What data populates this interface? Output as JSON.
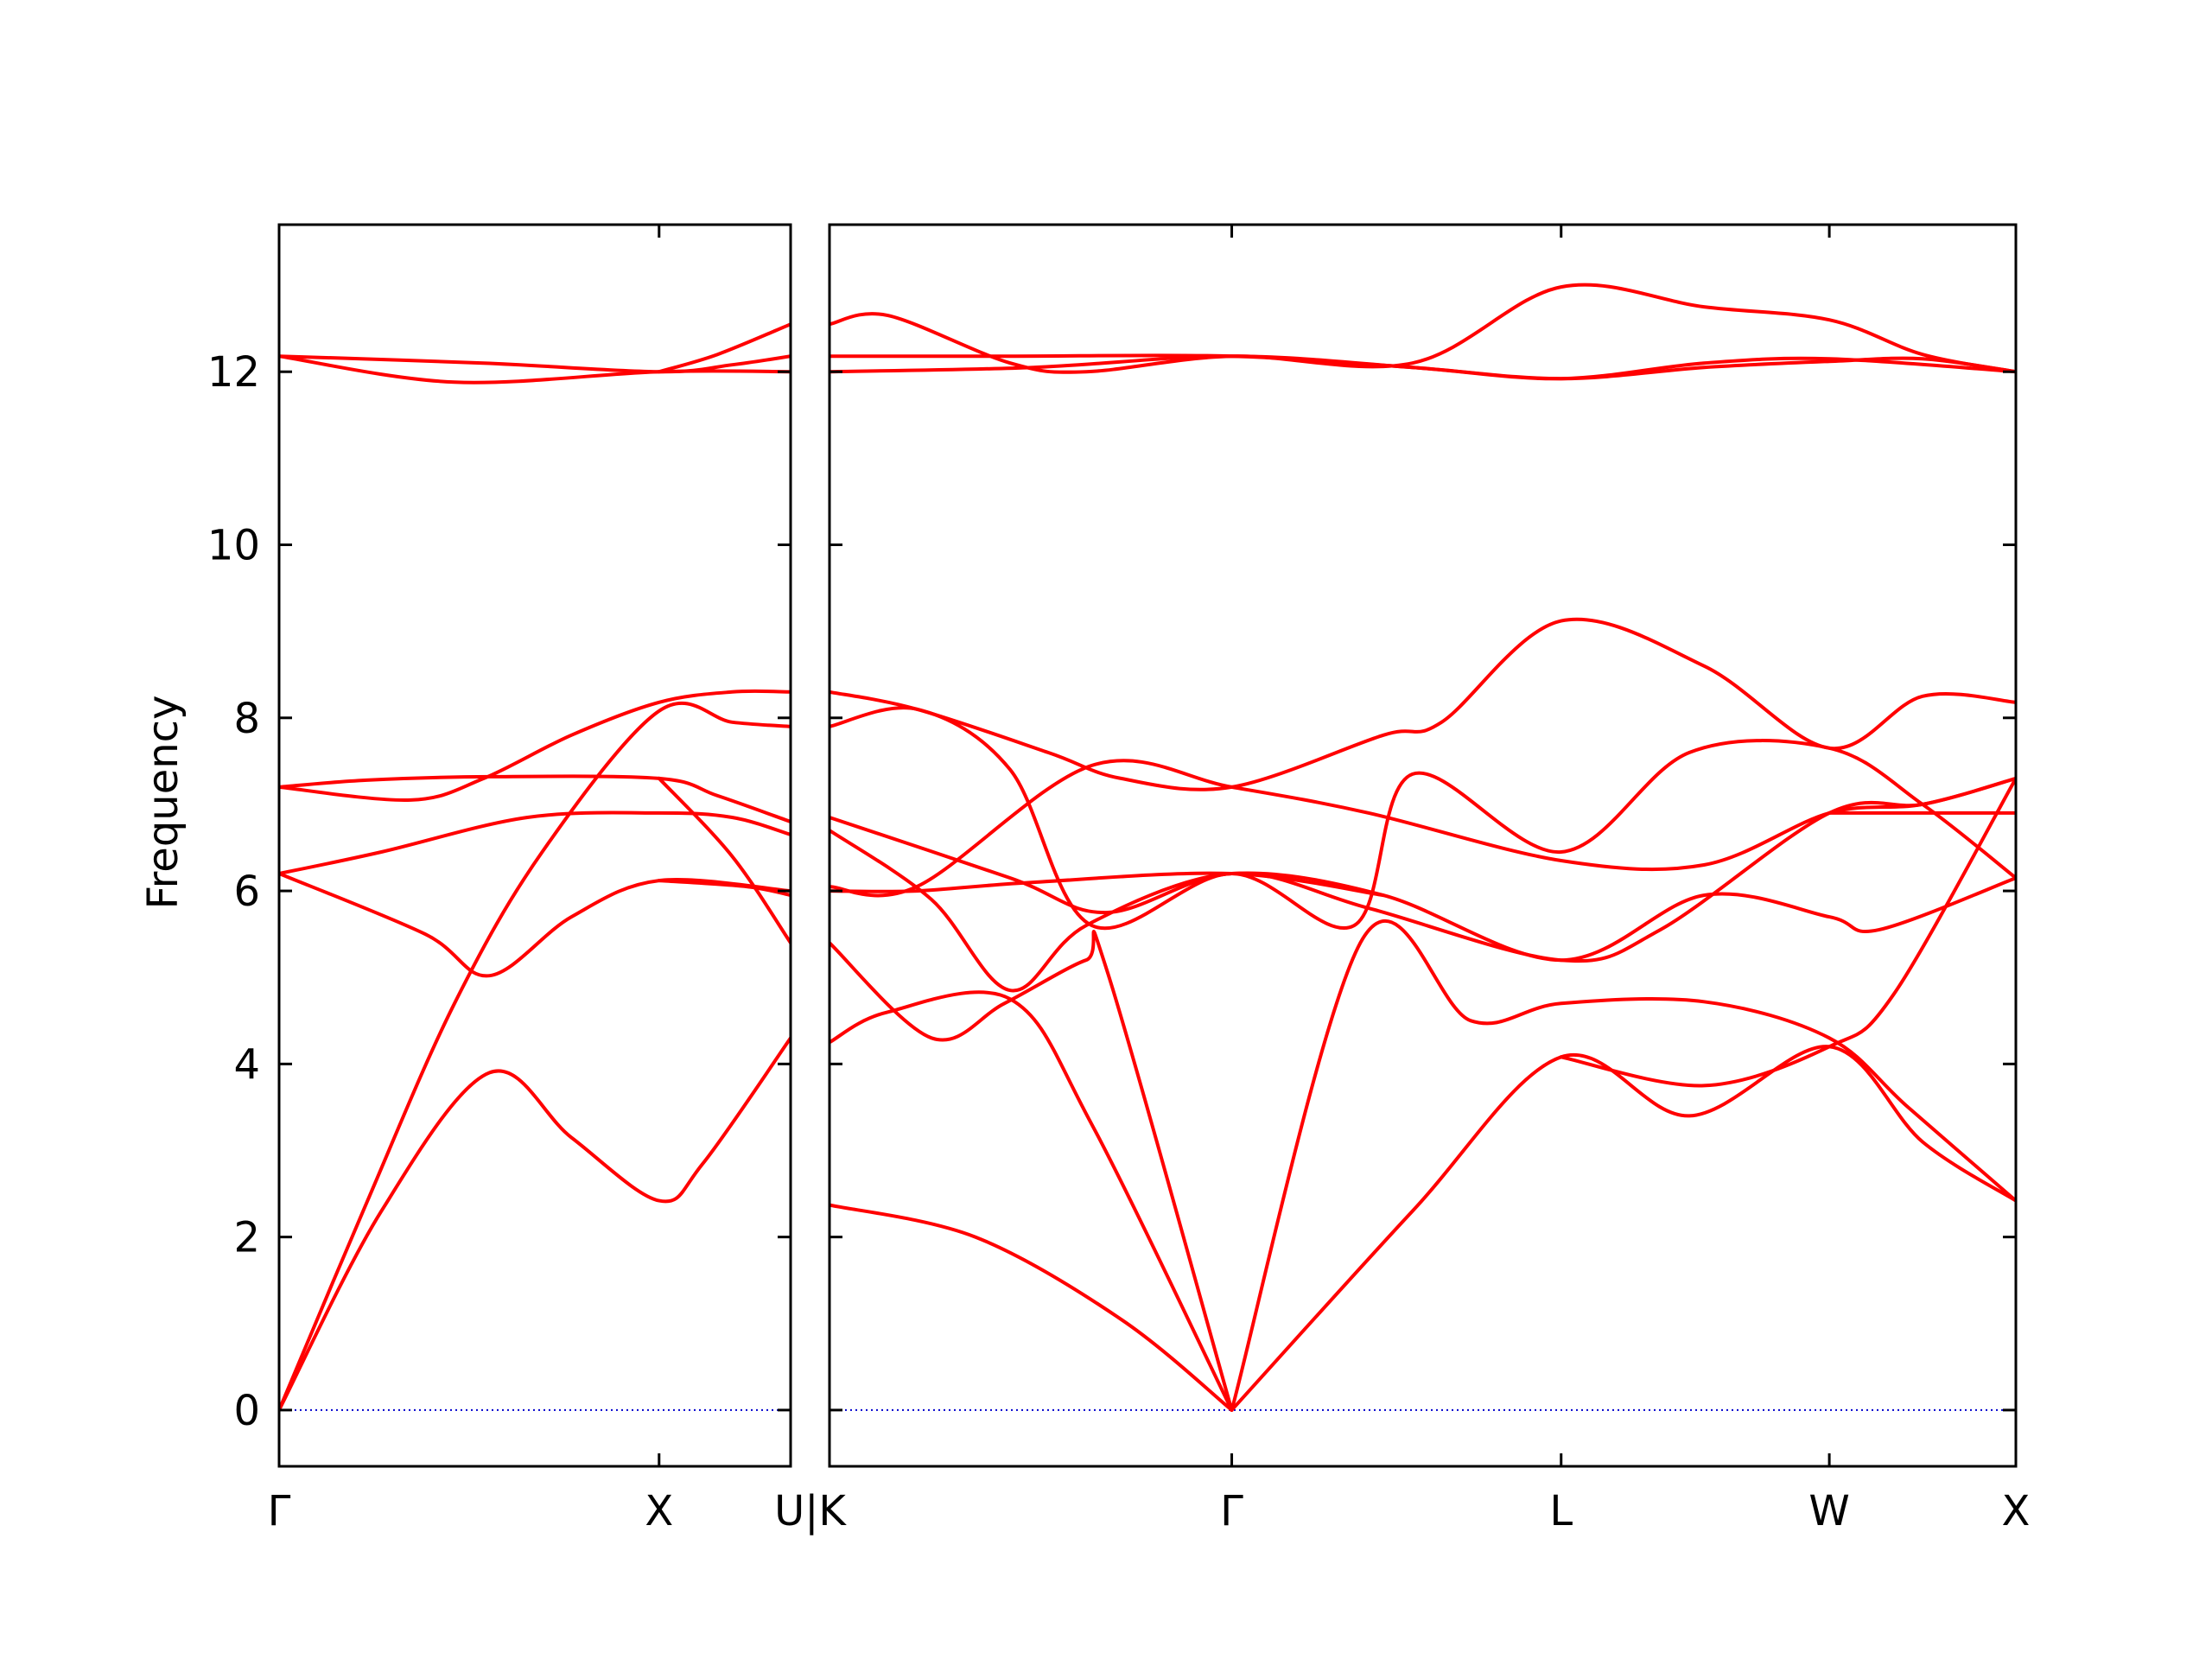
{
  "chart_data": {
    "type": "line",
    "ylabel": "Frequency",
    "ylim": [
      -0.65,
      13.7
    ],
    "yticks": [
      0,
      2,
      4,
      6,
      8,
      10,
      12
    ],
    "colors": {
      "bands": "#ff0000",
      "zero_line": "#0000cd",
      "axes": "#000000"
    },
    "panels": [
      {
        "xrange": [
          0,
          1.75
        ],
        "ticks": [
          {
            "x": 0,
            "label": "Γ"
          },
          {
            "x": 1.3,
            "label": "X"
          }
        ]
      },
      {
        "xrange": [
          0,
          4.07
        ],
        "ticks": [
          {
            "x": 0,
            "label": "U|K"
          },
          {
            "x": 1.38,
            "label": "Γ"
          },
          {
            "x": 2.51,
            "label": "L"
          },
          {
            "x": 3.43,
            "label": "W"
          },
          {
            "x": 4.07,
            "label": "X"
          }
        ]
      }
    ],
    "series": [
      {
        "panel": 0,
        "points": [
          [
            0,
            0
          ],
          [
            0.35,
            2.3
          ],
          [
            0.72,
            3.9
          ],
          [
            1.0,
            3.15
          ],
          [
            1.3,
            2.42
          ],
          [
            1.45,
            2.85
          ],
          [
            1.75,
            4.3
          ]
        ]
      },
      {
        "panel": 0,
        "points": [
          [
            0,
            0
          ],
          [
            0.3,
            2.4
          ],
          [
            0.6,
            4.7
          ],
          [
            0.9,
            6.45
          ],
          [
            1.3,
            8.08
          ],
          [
            1.55,
            7.95
          ],
          [
            1.75,
            7.9
          ]
        ]
      },
      {
        "panel": 0,
        "points": [
          [
            0,
            6.2
          ],
          [
            0.5,
            5.5
          ],
          [
            0.72,
            5.02
          ],
          [
            1.0,
            5.7
          ],
          [
            1.3,
            6.12
          ],
          [
            1.75,
            6.0
          ]
        ]
      },
      {
        "panel": 0,
        "points": [
          [
            0,
            6.2
          ],
          [
            0.35,
            6.45
          ],
          [
            0.85,
            6.85
          ],
          [
            1.3,
            6.9
          ],
          [
            1.55,
            6.85
          ],
          [
            1.75,
            6.65
          ]
        ]
      },
      {
        "panel": 0,
        "points": [
          [
            0,
            7.2
          ],
          [
            0.45,
            7.05
          ],
          [
            0.7,
            7.3
          ],
          [
            1.0,
            7.8
          ],
          [
            1.3,
            8.18
          ],
          [
            1.55,
            8.3
          ],
          [
            1.75,
            8.3
          ]
        ]
      },
      {
        "panel": 0,
        "points": [
          [
            0,
            7.2
          ],
          [
            0.3,
            7.28
          ],
          [
            0.72,
            7.32
          ],
          [
            1.3,
            7.3
          ],
          [
            1.5,
            7.1
          ],
          [
            1.75,
            6.8
          ]
        ]
      },
      {
        "panel": 0,
        "points": [
          [
            1.3,
            6.12
          ],
          [
            1.6,
            6.05
          ],
          [
            1.75,
            5.95
          ]
        ]
      },
      {
        "panel": 0,
        "points": [
          [
            1.3,
            7.3
          ],
          [
            1.55,
            6.4
          ],
          [
            1.75,
            5.4
          ]
        ]
      },
      {
        "panel": 0,
        "points": [
          [
            0,
            12.18
          ],
          [
            0.6,
            11.88
          ],
          [
            1.3,
            12.0
          ],
          [
            1.75,
            12.0
          ]
        ]
      },
      {
        "panel": 0,
        "points": [
          [
            0,
            12.18
          ],
          [
            0.7,
            12.1
          ],
          [
            1.3,
            12.0
          ],
          [
            1.55,
            12.08
          ],
          [
            1.75,
            12.18
          ]
        ]
      },
      {
        "panel": 0,
        "points": [
          [
            1.3,
            12.0
          ],
          [
            1.5,
            12.2
          ],
          [
            1.75,
            12.55
          ]
        ]
      },
      {
        "panel": 1,
        "points": [
          [
            0,
            2.37
          ],
          [
            0.5,
            2.0
          ],
          [
            1.0,
            1.05
          ],
          [
            1.38,
            0
          ]
        ]
      },
      {
        "panel": 1,
        "points": [
          [
            0,
            4.25
          ],
          [
            0.2,
            4.6
          ],
          [
            0.62,
            4.75
          ],
          [
            0.9,
            3.3
          ],
          [
            1.38,
            0
          ]
        ]
      },
      {
        "panel": 1,
        "points": [
          [
            0,
            5.4
          ],
          [
            0.35,
            4.3
          ],
          [
            0.6,
            4.7
          ],
          [
            0.88,
            5.2
          ],
          [
            0.95,
            5.1
          ],
          [
            1.38,
            0
          ]
        ]
      },
      {
        "panel": 1,
        "points": [
          [
            0,
            6.7
          ],
          [
            0.35,
            5.9
          ],
          [
            0.62,
            4.85
          ],
          [
            0.88,
            5.6
          ],
          [
            1.38,
            6.2
          ],
          [
            1.85,
            5.8
          ],
          [
            2.51,
            5.2
          ],
          [
            2.85,
            5.55
          ],
          [
            3.43,
            6.9
          ],
          [
            3.75,
            7.0
          ],
          [
            4.07,
            7.3
          ]
        ]
      },
      {
        "panel": 1,
        "points": [
          [
            0,
            6.05
          ],
          [
            0.3,
            6.05
          ],
          [
            0.9,
            7.45
          ],
          [
            1.38,
            7.2
          ],
          [
            1.85,
            6.9
          ],
          [
            2.51,
            6.35
          ],
          [
            3.0,
            6.3
          ],
          [
            3.43,
            6.9
          ],
          [
            3.75,
            7.0
          ],
          [
            4.07,
            7.3
          ]
        ]
      },
      {
        "panel": 1,
        "points": [
          [
            0,
            8.3
          ],
          [
            0.3,
            8.1
          ],
          [
            0.75,
            7.6
          ],
          [
            1.0,
            7.3
          ],
          [
            1.38,
            7.2
          ],
          [
            1.9,
            7.8
          ],
          [
            2.1,
            7.95
          ],
          [
            2.51,
            9.12
          ],
          [
            3.0,
            8.6
          ],
          [
            3.43,
            7.65
          ],
          [
            3.75,
            8.25
          ],
          [
            4.07,
            8.18
          ]
        ]
      },
      {
        "panel": 1,
        "points": [
          [
            0,
            7.9
          ],
          [
            0.3,
            8.1
          ],
          [
            0.62,
            7.4
          ],
          [
            0.9,
            5.6
          ],
          [
            1.38,
            6.2
          ],
          [
            1.8,
            5.6
          ],
          [
            2.0,
            7.35
          ],
          [
            2.51,
            6.45
          ],
          [
            2.95,
            7.6
          ],
          [
            3.43,
            7.65
          ],
          [
            3.75,
            7.0
          ],
          [
            4.07,
            6.15
          ]
        ]
      },
      {
        "panel": 1,
        "points": [
          [
            0,
            6.85
          ],
          [
            0.62,
            6.15
          ],
          [
            0.95,
            5.75
          ],
          [
            1.38,
            6.2
          ],
          [
            1.9,
            5.95
          ],
          [
            2.51,
            5.2
          ],
          [
            3.0,
            5.95
          ],
          [
            3.43,
            5.7
          ],
          [
            3.6,
            5.55
          ],
          [
            4.07,
            6.15
          ]
        ]
      },
      {
        "panel": 1,
        "points": [
          [
            0,
            6.0
          ],
          [
            0.3,
            6.0
          ],
          [
            0.7,
            6.1
          ],
          [
            1.38,
            6.2
          ],
          [
            1.9,
            5.95
          ]
        ]
      },
      {
        "panel": 1,
        "points": [
          [
            1.38,
            0
          ],
          [
            1.83,
            5.45
          ],
          [
            2.2,
            4.5
          ],
          [
            2.51,
            4.7
          ],
          [
            3.0,
            4.72
          ],
          [
            3.43,
            4.3
          ],
          [
            3.7,
            3.5
          ],
          [
            4.07,
            2.42
          ]
        ]
      },
      {
        "panel": 1,
        "points": [
          [
            1.38,
            0
          ],
          [
            2.0,
            2.3
          ],
          [
            2.51,
            4.08
          ],
          [
            2.95,
            3.4
          ],
          [
            3.43,
            4.2
          ],
          [
            3.75,
            3.1
          ],
          [
            4.07,
            2.42
          ]
        ]
      },
      {
        "panel": 1,
        "points": [
          [
            2.51,
            4.08
          ],
          [
            3.0,
            3.75
          ],
          [
            3.43,
            4.2
          ],
          [
            3.65,
            4.8
          ],
          [
            4.07,
            7.3
          ]
        ]
      },
      {
        "panel": 1,
        "points": [
          [
            3.43,
            6.9
          ],
          [
            3.75,
            6.9
          ],
          [
            4.07,
            6.9
          ]
        ]
      },
      {
        "panel": 1,
        "points": [
          [
            0,
            12.55
          ],
          [
            0.2,
            12.65
          ],
          [
            0.62,
            12.1
          ],
          [
            0.88,
            12.0
          ],
          [
            1.38,
            12.18
          ],
          [
            2.0,
            12.1
          ],
          [
            2.51,
            12.98
          ],
          [
            3.0,
            12.75
          ],
          [
            3.43,
            12.6
          ],
          [
            3.75,
            12.2
          ],
          [
            4.07,
            12.0
          ]
        ]
      },
      {
        "panel": 1,
        "points": [
          [
            0,
            12.18
          ],
          [
            0.62,
            12.18
          ],
          [
            1.38,
            12.18
          ],
          [
            2.0,
            12.05
          ],
          [
            2.51,
            11.92
          ],
          [
            3.0,
            12.1
          ],
          [
            3.43,
            12.15
          ],
          [
            4.07,
            12.0
          ]
        ]
      },
      {
        "panel": 1,
        "points": [
          [
            0,
            12.0
          ],
          [
            0.7,
            12.05
          ],
          [
            1.38,
            12.18
          ],
          [
            2.0,
            12.05
          ],
          [
            2.51,
            11.92
          ],
          [
            3.0,
            12.05
          ],
          [
            3.43,
            12.12
          ],
          [
            3.75,
            12.15
          ],
          [
            4.07,
            12.0
          ]
        ]
      }
    ]
  }
}
